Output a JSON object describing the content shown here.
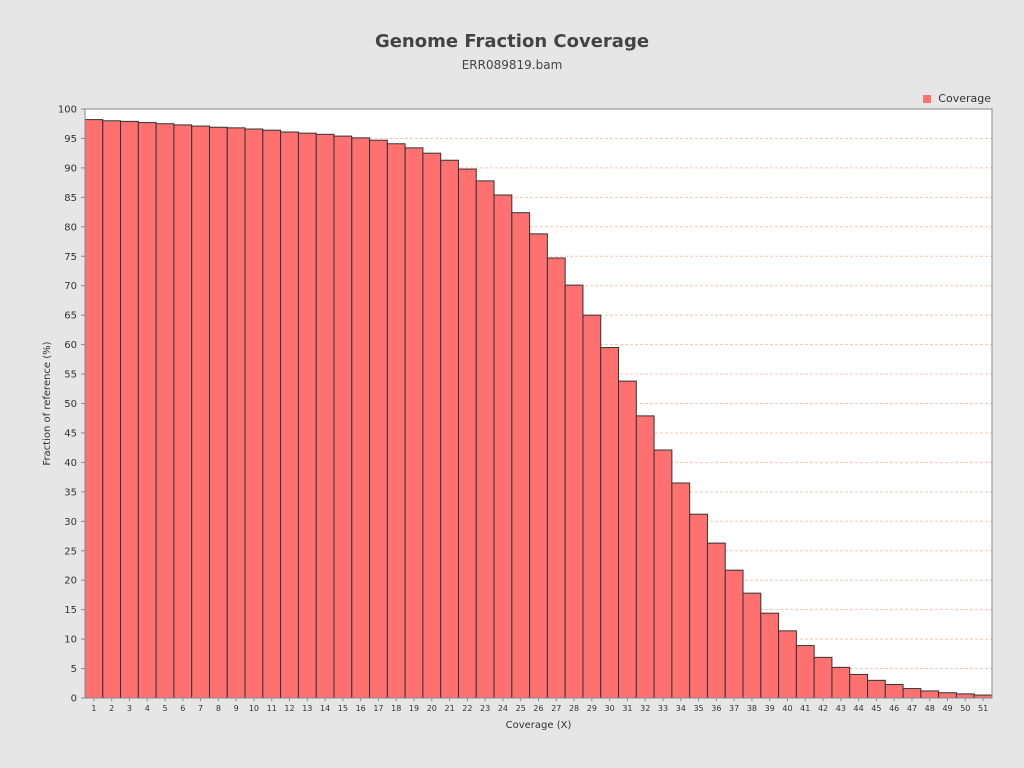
{
  "chart_data": {
    "type": "bar",
    "title": "Genome Fraction Coverage",
    "subtitle": "ERR089819.bam",
    "xlabel": "Coverage (X)",
    "ylabel": "Fraction of reference (%)",
    "legend": {
      "label": "Coverage",
      "placement": "top-right"
    },
    "ylim": [
      0,
      100
    ],
    "yticks": [
      0,
      5,
      10,
      15,
      20,
      25,
      30,
      35,
      40,
      45,
      50,
      55,
      60,
      65,
      70,
      75,
      80,
      85,
      90,
      95,
      100
    ],
    "grid": true,
    "categories": [
      "1",
      "2",
      "3",
      "4",
      "5",
      "6",
      "7",
      "8",
      "9",
      "10",
      "11",
      "12",
      "13",
      "14",
      "15",
      "16",
      "17",
      "18",
      "19",
      "20",
      "21",
      "22",
      "23",
      "24",
      "25",
      "26",
      "27",
      "28",
      "29",
      "30",
      "31",
      "32",
      "33",
      "34",
      "35",
      "36",
      "37",
      "38",
      "39",
      "40",
      "41",
      "42",
      "43",
      "44",
      "45",
      "46",
      "47",
      "48",
      "49",
      "50",
      "51"
    ],
    "series": [
      {
        "name": "Coverage",
        "values": [
          98.2,
          98.0,
          97.9,
          97.7,
          97.5,
          97.3,
          97.1,
          96.9,
          96.8,
          96.6,
          96.4,
          96.1,
          95.9,
          95.7,
          95.4,
          95.1,
          94.7,
          94.1,
          93.4,
          92.5,
          91.3,
          89.8,
          87.8,
          85.4,
          82.4,
          78.8,
          74.7,
          70.1,
          65.0,
          59.5,
          53.8,
          47.9,
          42.1,
          36.5,
          31.2,
          26.3,
          21.7,
          17.8,
          14.4,
          11.4,
          8.9,
          6.9,
          5.2,
          4.0,
          3.0,
          2.3,
          1.6,
          1.2,
          0.9,
          0.7,
          0.5
        ]
      }
    ]
  },
  "colors": {
    "bar_fill": "#ff7070",
    "bar_stroke": "#333333",
    "grid": "#f0c8b4",
    "plot_background": "#ffffff",
    "page_background": "#e6e6e6"
  }
}
